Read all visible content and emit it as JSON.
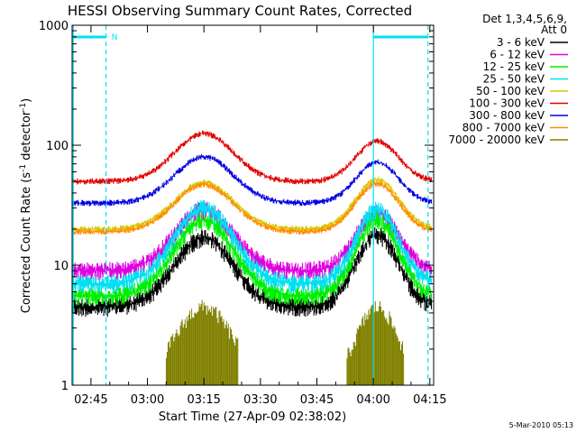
{
  "chart_data": {
    "type": "line",
    "title": "HESSI Observing Summary Count Rates, Corrected",
    "xlabel": "Start Time (27-Apr-09 02:38:02)",
    "ylabel_main": "Corrected Count Rate (s",
    "ylabel_sup1": "-1",
    "ylabel_mid": " detector",
    "ylabel_sup2": "-1",
    "ylabel_end": ")",
    "y_scale": "log",
    "ylim": [
      1,
      1000
    ],
    "xlim_minutes": [
      40,
      136
    ],
    "x_ticks": [
      {
        "label": "02:45",
        "value": 45
      },
      {
        "label": "03:00",
        "value": 60
      },
      {
        "label": "03:15",
        "value": 75
      },
      {
        "label": "03:30",
        "value": 90
      },
      {
        "label": "03:45",
        "value": 105
      },
      {
        "label": "04:00",
        "value": 120
      },
      {
        "label": "04:15",
        "value": 135
      }
    ],
    "y_ticks": [
      {
        "label": "1",
        "value": 1
      },
      {
        "label": "10",
        "value": 10
      },
      {
        "label": "100",
        "value": 100
      },
      {
        "label": "1000",
        "value": 1000
      }
    ],
    "legend_header": [
      "Det 1,3,4,5,6,9,",
      "Att 0"
    ],
    "legend_placement": "right",
    "night_marker_label": "N",
    "series": [
      {
        "name": "3 - 6 keV",
        "color": "#000000",
        "base": 4.5,
        "peaks": [
          17.0,
          18.0
        ]
      },
      {
        "name": "6 - 12 keV",
        "color": "#e000e0",
        "base": 9.0,
        "peaks": [
          29.0,
          27.0
        ]
      },
      {
        "name": "12 - 25 keV",
        "color": "#00ee00",
        "base": 5.5,
        "peaks": [
          24.0,
          24.0
        ]
      },
      {
        "name": "25 - 50 keV",
        "color": "#00e0f0",
        "base": 7.0,
        "peaks": [
          30.0,
          29.0
        ]
      },
      {
        "name": "50 - 100 keV",
        "color": "#d8c800",
        "base": 20.0,
        "peaks": [
          49.0,
          52.0
        ]
      },
      {
        "name": "100 - 300 keV",
        "color": "#e00000",
        "base": 50.0,
        "peaks": [
          125.0,
          108.0
        ]
      },
      {
        "name": "300 - 800 keV",
        "color": "#0000e0",
        "base": 33.0,
        "peaks": [
          80.0,
          72.0
        ]
      },
      {
        "name": "800 - 7000 keV",
        "color": "#ff8c00",
        "base": 19.0,
        "peaks": [
          47.0,
          48.0
        ]
      },
      {
        "name": "7000 - 20000 keV",
        "color": "#808000",
        "base": 1.0,
        "peaks": [
          4.5,
          4.5
        ]
      }
    ],
    "saa_intervals_minutes": [
      [
        40,
        49
      ],
      [
        120,
        135
      ]
    ],
    "passes": [
      {
        "start": 49,
        "end": 120
      },
      {
        "start": 120,
        "end": 136
      }
    ]
  },
  "timestamp": "5-Mar-2010 05:13"
}
